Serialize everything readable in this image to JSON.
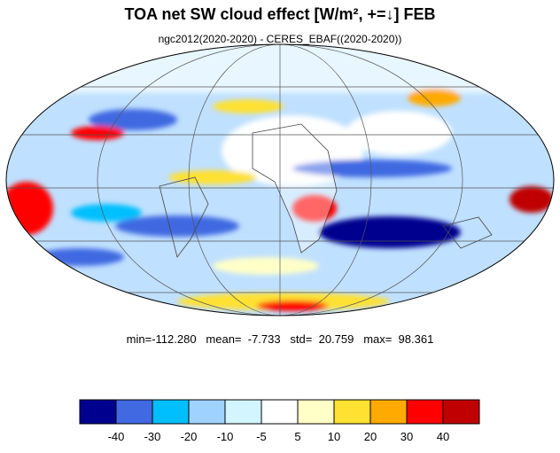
{
  "title": "TOA net SW cloud effect [W/m², +=↓]  FEB",
  "subtitle": "ngc2012(2020-2020) - CERES_EBAF((2020-2020))",
  "stats": "min=-112.280   mean=  -7.733   std=  20.759   max=  98.361",
  "colorbar": {
    "colors": [
      "#00008f",
      "#4169e1",
      "#00bfff",
      "#a0d2ff",
      "#d2f5ff",
      "#ffffff",
      "#ffffc8",
      "#ffe132",
      "#ffaa00",
      "#ff0000",
      "#c00000"
    ],
    "levels": [
      -40,
      -30,
      -20,
      -10,
      -5,
      5,
      10,
      20,
      30,
      40
    ]
  }
}
